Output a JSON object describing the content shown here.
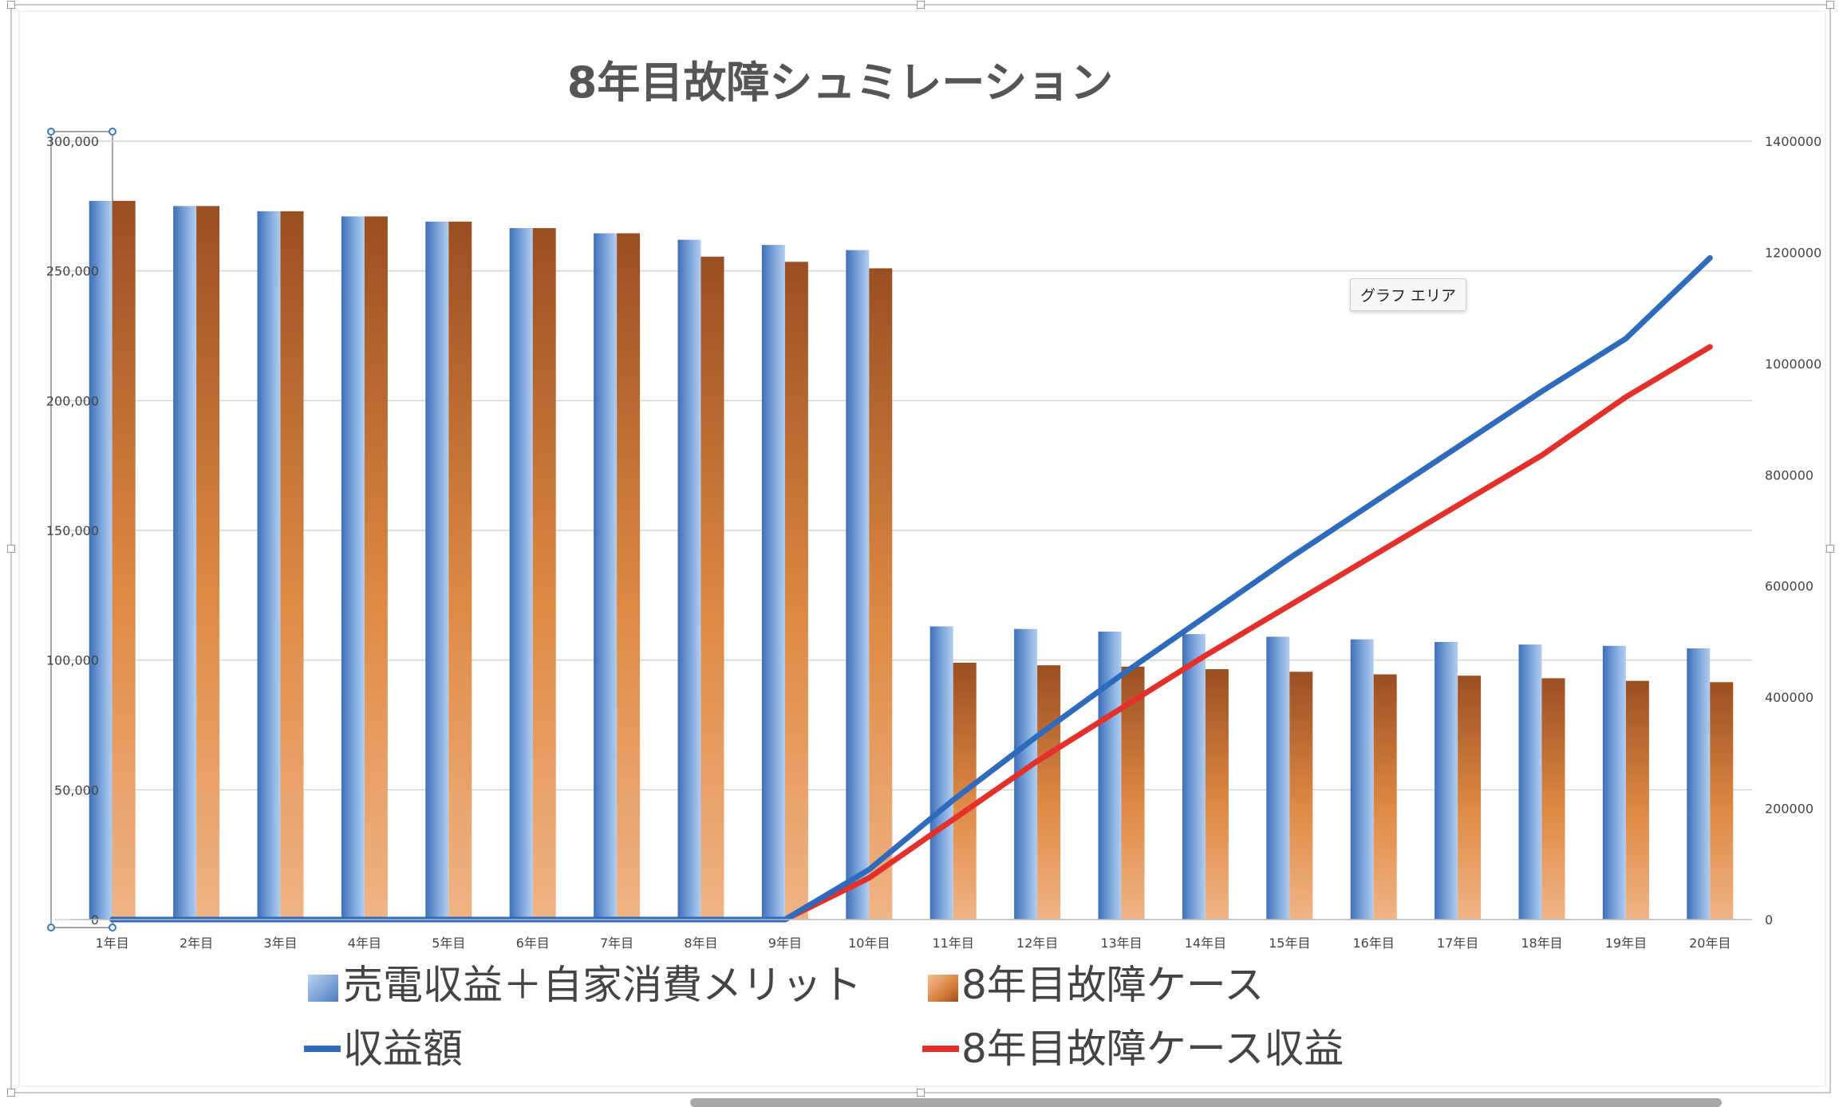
{
  "tooltip": "グラフ エリア",
  "colors": {
    "blue_light": "#a6c4e8",
    "blue_dark": "#3f6fb8",
    "orange_top": "#9a4f22",
    "orange_mid": "#df8a45",
    "orange_bottom": "#f0b486",
    "line_blue": "#2f6bbd",
    "line_red": "#e3302a",
    "grid": "#d4d4d4",
    "axis_text": "#444444",
    "title_text": "#555555"
  },
  "chart_data": {
    "type": "bar+line",
    "title": "8年目故障シュミレーション",
    "categories": [
      "1年目",
      "2年目",
      "3年目",
      "4年目",
      "5年目",
      "6年目",
      "7年目",
      "8年目",
      "9年目",
      "10年目",
      "11年目",
      "12年目",
      "13年目",
      "14年目",
      "15年目",
      "16年目",
      "17年目",
      "18年目",
      "19年目",
      "20年目"
    ],
    "primary_axis": {
      "ylim": [
        0,
        300000
      ],
      "ticks": [
        0,
        50000,
        100000,
        150000,
        200000,
        250000,
        300000
      ],
      "tick_labels": [
        "0",
        "50,000",
        "100,000",
        "150,000",
        "200,000",
        "250,000",
        "300,000"
      ]
    },
    "secondary_axis": {
      "ylim": [
        0,
        1400000
      ],
      "ticks": [
        0,
        200000,
        400000,
        600000,
        800000,
        1000000,
        1200000,
        1400000
      ],
      "tick_labels": [
        "0",
        "200000",
        "400000",
        "600000",
        "800000",
        "1000000",
        "1200000",
        "1400000"
      ]
    },
    "series": [
      {
        "name": "売電収益＋自家消費メリット",
        "kind": "bar",
        "axis": "primary",
        "style": "blue",
        "values": [
          277000,
          275000,
          273000,
          271000,
          269000,
          266500,
          264500,
          262000,
          260000,
          258000,
          113000,
          112000,
          111000,
          110000,
          109000,
          108000,
          107000,
          106000,
          105500,
          104500
        ]
      },
      {
        "name": "8年目故障ケース",
        "kind": "bar",
        "axis": "primary",
        "style": "orange",
        "values": [
          277000,
          275000,
          273000,
          271000,
          269000,
          266500,
          264500,
          255500,
          253500,
          251000,
          99000,
          98000,
          97500,
          96500,
          95500,
          94500,
          94000,
          93000,
          92000,
          91500
        ]
      },
      {
        "name": "収益額",
        "kind": "line",
        "axis": "secondary",
        "style": "blue",
        "values": [
          0,
          0,
          0,
          0,
          0,
          0,
          0,
          0,
          0,
          90000,
          215000,
          330000,
          440000,
          545000,
          650000,
          750000,
          850000,
          950000,
          1045000,
          1190000
        ]
      },
      {
        "name": "8年目故障ケース収益",
        "kind": "line",
        "axis": "secondary",
        "style": "red",
        "values": [
          0,
          0,
          0,
          0,
          0,
          0,
          0,
          0,
          0,
          75000,
          180000,
          285000,
          380000,
          475000,
          565000,
          655000,
          745000,
          835000,
          940000,
          1030000
        ]
      }
    ]
  }
}
